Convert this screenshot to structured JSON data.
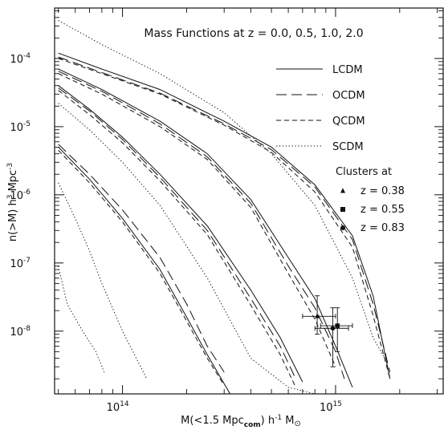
{
  "chart_data": {
    "type": "line",
    "title": "Mass Functions at z = 0.0, 0.5, 1.0, 2.0",
    "xlabel": {
      "base": "M(<1.5 Mpc",
      "sub": "com",
      "mid": ") h",
      "sup": "-1",
      "tail": " M",
      "symbol": "⊙"
    },
    "ylabel": {
      "base": "n(>M) h",
      "sup1": "3",
      "mid": " Mpc",
      "sup2": "-3"
    },
    "xscale": "log",
    "yscale": "log",
    "xlim": [
      48000000000000.0,
      3200000000000000.0
    ],
    "ylim": [
      1.2e-09,
      0.00055
    ],
    "x_ticks": [
      {
        "value": 100000000000000.0,
        "base": "10",
        "exp": "14"
      },
      {
        "value": 1000000000000000.0,
        "base": "10",
        "exp": "15"
      }
    ],
    "y_ticks": [
      {
        "value": 0.0001,
        "base": "10",
        "exp": "-4"
      },
      {
        "value": 1e-05,
        "base": "10",
        "exp": "-5"
      },
      {
        "value": 1e-06,
        "base": "10",
        "exp": "-6"
      },
      {
        "value": 1e-07,
        "base": "10",
        "exp": "-7"
      },
      {
        "value": 1e-08,
        "base": "10",
        "exp": "-8"
      }
    ],
    "legend": {
      "placement": "top-right",
      "entries": [
        {
          "label": "LCDM",
          "style": "solid"
        },
        {
          "label": "OCDM",
          "style": "longdash"
        },
        {
          "label": "QCDM",
          "style": "dash"
        },
        {
          "label": "SCDM",
          "style": "dotted"
        }
      ]
    },
    "clusters_legend": {
      "title": "Clusters at",
      "entries": [
        {
          "marker": "triangle",
          "label": "z = 0.38"
        },
        {
          "marker": "square",
          "label": "z = 0.55"
        },
        {
          "marker": "circle",
          "label": "z = 0.83"
        }
      ]
    },
    "series": [
      {
        "model": "LCDM",
        "style": "solid",
        "z": 0.0,
        "x": [
          50000000000000.0,
          80000000000000.0,
          150000000000000.0,
          300000000000000.0,
          500000000000000.0,
          800000000000000.0,
          1200000000000000.0,
          1500000000000000.0,
          1800000000000000.0
        ],
        "y": [
          0.00012,
          7e-05,
          3.5e-05,
          1.2e-05,
          5e-06,
          1.4e-06,
          2.5e-07,
          3.3e-08,
          2e-09
        ]
      },
      {
        "model": "OCDM",
        "style": "longdash",
        "z": 0.0,
        "x": [
          50000000000000.0,
          80000000000000.0,
          150000000000000.0,
          300000000000000.0,
          500000000000000.0,
          800000000000000.0,
          1200000000000000.0,
          1500000000000000.0,
          1800000000000000.0
        ],
        "y": [
          0.000105,
          6.2e-05,
          3.1e-05,
          1.1e-05,
          4.6e-06,
          1.3e-06,
          2.2e-07,
          2.5e-08,
          2.5e-09
        ]
      },
      {
        "model": "QCDM",
        "style": "dash",
        "z": 0.0,
        "x": [
          50000000000000.0,
          80000000000000.0,
          150000000000000.0,
          300000000000000.0,
          500000000000000.0,
          800000000000000.0,
          1200000000000000.0,
          1500000000000000.0,
          1800000000000000.0
        ],
        "y": [
          0.0001,
          6e-05,
          3e-05,
          1.05e-05,
          4.2e-06,
          1.1e-06,
          1.7e-07,
          1.7e-08,
          2e-09
        ]
      },
      {
        "model": "SCDM",
        "style": "dotted",
        "z": 0.0,
        "x": [
          50000000000000.0,
          80000000000000.0,
          150000000000000.0,
          300000000000000.0,
          500000000000000.0,
          800000000000000.0,
          1200000000000000.0,
          1500000000000000.0,
          1700000000000000.0
        ],
        "y": [
          0.00036,
          0.00016,
          6e-05,
          1.6e-05,
          4e-06,
          7e-07,
          6e-08,
          8e-09,
          4e-09
        ]
      },
      {
        "model": "LCDM",
        "style": "solid",
        "z": 0.5,
        "x": [
          50000000000000.0,
          80000000000000.0,
          150000000000000.0,
          250000000000000.0,
          400000000000000.0,
          600000000000000.0,
          800000000000000.0,
          1000000000000000.0,
          1200000000000000.0
        ],
        "y": [
          7e-05,
          3.5e-05,
          1.2e-05,
          4e-06,
          8.5e-07,
          1.2e-07,
          3e-08,
          6e-09,
          1.5e-09
        ]
      },
      {
        "model": "OCDM",
        "style": "longdash",
        "z": 0.5,
        "x": [
          50000000000000.0,
          80000000000000.0,
          150000000000000.0,
          250000000000000.0,
          400000000000000.0,
          600000000000000.0,
          800000000000000.0,
          1000000000000000.0,
          1100000000000000.0
        ],
        "y": [
          6.5e-05,
          3.3e-05,
          1.1e-05,
          3.6e-06,
          7.5e-07,
          9e-08,
          2.2e-08,
          5e-09,
          2e-09
        ]
      },
      {
        "model": "QCDM",
        "style": "dash",
        "z": 0.5,
        "x": [
          50000000000000.0,
          80000000000000.0,
          150000000000000.0,
          250000000000000.0,
          400000000000000.0,
          600000000000000.0,
          800000000000000.0,
          1000000000000000.0
        ],
        "y": [
          6e-05,
          3e-05,
          1e-05,
          3.3e-06,
          6.5e-07,
          7e-08,
          1.5e-08,
          3e-09
        ]
      },
      {
        "model": "SCDM",
        "style": "dotted",
        "z": 0.5,
        "x": [
          50000000000000.0,
          70000000000000.0,
          100000000000000.0,
          150000000000000.0,
          250000000000000.0,
          400000000000000.0,
          600000000000000.0,
          800000000000000.0
        ],
        "y": [
          2.2e-05,
          9e-06,
          3e-06,
          7e-07,
          6e-08,
          4e-09,
          1.5e-09,
          1.2e-09
        ]
      },
      {
        "model": "LCDM",
        "style": "solid",
        "z": 1.0,
        "x": [
          50000000000000.0,
          70000000000000.0,
          100000000000000.0,
          150000000000000.0,
          250000000000000.0,
          400000000000000.0,
          550000000000000.0,
          700000000000000.0
        ],
        "y": [
          4e-05,
          1.8e-05,
          7e-06,
          2e-06,
          3.5e-07,
          4e-08,
          8e-09,
          1.8e-09
        ]
      },
      {
        "model": "OCDM",
        "style": "longdash",
        "z": 1.0,
        "x": [
          50000000000000.0,
          70000000000000.0,
          100000000000000.0,
          150000000000000.0,
          250000000000000.0,
          400000000000000.0,
          550000000000000.0,
          650000000000000.0
        ],
        "y": [
          3.7e-05,
          1.7e-05,
          6.5e-06,
          1.8e-06,
          3e-07,
          3e-08,
          6e-09,
          2e-09
        ]
      },
      {
        "model": "QCDM",
        "style": "dash",
        "z": 1.0,
        "x": [
          50000000000000.0,
          70000000000000.0,
          100000000000000.0,
          150000000000000.0,
          250000000000000.0,
          400000000000000.0,
          550000000000000.0,
          650000000000000.0
        ],
        "y": [
          3.4e-05,
          1.5e-05,
          5.8e-06,
          1.6e-06,
          2.6e-07,
          2.4e-08,
          4.5e-09,
          1.5e-09
        ]
      },
      {
        "model": "SCDM",
        "style": "dotted",
        "z": 1.0,
        "x": [
          50000000000000.0,
          60000000000000.0,
          70000000000000.0,
          80000000000000.0,
          100000000000000.0,
          130000000000000.0
        ],
        "y": [
          1.5e-06,
          4.5e-07,
          1.5e-07,
          5e-08,
          1e-08,
          2e-09
        ]
      },
      {
        "model": "LCDM",
        "style": "solid",
        "z": 2.0,
        "x": [
          50000000000000.0,
          70000000000000.0,
          100000000000000.0,
          150000000000000.0,
          200000000000000.0,
          250000000000000.0,
          320000000000000.0
        ],
        "y": [
          5e-06,
          1.7e-06,
          4.5e-07,
          8e-08,
          1.6e-08,
          4.5e-09,
          1.2e-09
        ]
      },
      {
        "model": "OCDM",
        "style": "longdash",
        "z": 2.0,
        "x": [
          50000000000000.0,
          70000000000000.0,
          100000000000000.0,
          150000000000000.0,
          200000000000000.0,
          250000000000000.0,
          300000000000000.0
        ],
        "y": [
          5.5e-06,
          2e-06,
          6e-07,
          1.2e-07,
          2.5e-08,
          6e-09,
          2.5e-09
        ]
      },
      {
        "model": "QCDM",
        "style": "dash",
        "z": 2.0,
        "x": [
          50000000000000.0,
          70000000000000.0,
          100000000000000.0,
          150000000000000.0,
          200000000000000.0,
          250000000000000.0,
          300000000000000.0
        ],
        "y": [
          4.5e-06,
          1.5e-06,
          4e-07,
          7e-08,
          1.4e-08,
          4e-09,
          1.6e-09
        ]
      },
      {
        "model": "SCDM",
        "style": "dotted",
        "z": 2.0,
        "x": [
          50000000000000.0,
          55000000000000.0,
          65000000000000.0,
          75000000000000.0,
          82000000000000.0
        ],
        "y": [
          9e-08,
          2.5e-08,
          1e-08,
          5e-09,
          2.5e-09
        ]
      }
    ],
    "clusters": [
      {
        "marker": "triangle",
        "z": 0.38,
        "x": 820000000000000.0,
        "y": 1.65e-08,
        "xerr": [
          700000000000000.0,
          1000000000000000.0
        ],
        "yerr": [
          9e-09,
          3.3e-08
        ]
      },
      {
        "marker": "square",
        "z": 0.55,
        "x": 1020000000000000.0,
        "y": 1.2e-08,
        "xerr": [
          850000000000000.0,
          1200000000000000.0
        ],
        "yerr": [
          5e-09,
          2.2e-08
        ]
      },
      {
        "marker": "circle",
        "z": 0.83,
        "x": 970000000000000.0,
        "y": 1.1e-08,
        "xerr": [
          800000000000000.0,
          1150000000000000.0
        ],
        "yerr": [
          3e-09,
          2.2e-08
        ]
      }
    ]
  }
}
